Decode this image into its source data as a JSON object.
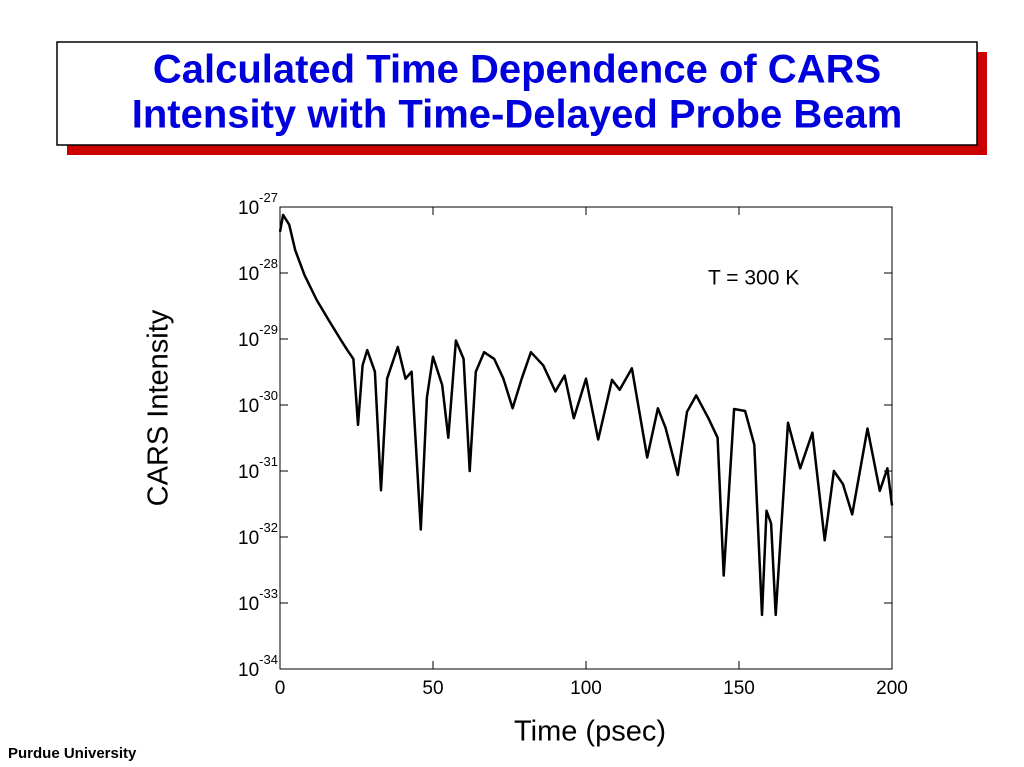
{
  "chart_data": {
    "type": "line",
    "title": [
      "Calculated Time Dependence of CARS",
      "Intensity with Time-Delayed Probe Beam"
    ],
    "xlabel": "Time (psec)",
    "ylabel": "CARS Intensity",
    "annotation": "T = 300 K",
    "footer": "Purdue University",
    "color": "#000000",
    "log_y": true,
    "x": [
      0,
      1,
      3,
      5,
      8,
      12,
      16,
      20,
      22,
      24,
      25.5,
      27,
      28.5,
      31,
      33,
      35,
      38.5,
      41,
      43,
      46,
      48,
      50,
      53,
      55,
      57.5,
      60,
      62,
      64,
      66.7,
      70,
      73,
      76,
      79,
      82,
      86,
      90,
      93,
      96,
      100,
      104,
      108.5,
      111,
      115,
      120,
      123.5,
      126,
      130,
      133,
      136,
      140,
      143,
      145,
      148.4,
      152,
      155,
      157.5,
      159,
      160.5,
      162,
      166,
      170,
      174,
      178,
      181,
      184,
      187,
      192,
      196,
      198.5,
      200
    ],
    "values": [
      4.2e-28,
      7.6e-28,
      5.4e-28,
      2.2e-28,
      9.3e-29,
      3.9e-29,
      1.9e-29,
      9.5e-30,
      6.8e-30,
      5e-30,
      5e-31,
      4e-30,
      6.8e-30,
      3.2e-30,
      5.1e-32,
      2.5e-30,
      7.6e-30,
      2.5e-30,
      3.2e-30,
      1.3e-32,
      1.3e-30,
      5.4e-30,
      2e-30,
      3.2e-31,
      9.5e-30,
      5e-30,
      1e-31,
      3.2e-30,
      6.3e-30,
      5e-30,
      2.5e-30,
      8.9e-31,
      2.5e-30,
      6.3e-30,
      4e-30,
      1.6e-30,
      2.8e-30,
      6.3e-31,
      2.5e-30,
      3e-31,
      2.4e-30,
      1.7e-30,
      3.6e-30,
      1.6e-31,
      8.9e-31,
      4.5e-31,
      8.7e-32,
      7.9e-31,
      1.4e-30,
      6.3e-31,
      3.2e-31,
      2.6e-33,
      8.7e-31,
      8.1e-31,
      2.5e-31,
      6.6e-34,
      2.5e-32,
      1.6e-32,
      6.6e-34,
      5.4e-31,
      1.1e-31,
      3.8e-31,
      8.9e-33,
      1e-31,
      6.3e-32,
      2.2e-32,
      4.4e-31,
      5e-32,
      1.1e-31,
      3e-32
    ],
    "xlim": [
      0,
      200
    ],
    "xticks": [
      0,
      50,
      100,
      150,
      200
    ],
    "ylim": [
      1e-34,
      1e-27
    ],
    "yticks": [
      {
        "value": 1e-27,
        "label": "10",
        "exponent": "-27"
      },
      {
        "value": 1e-28,
        "label": "10",
        "exponent": "-28"
      },
      {
        "value": 1e-29,
        "label": "10",
        "exponent": "-29"
      },
      {
        "value": 1e-30,
        "label": "10",
        "exponent": "-30"
      },
      {
        "value": 1e-31,
        "label": "10",
        "exponent": "-31"
      },
      {
        "value": 1e-32,
        "label": "10",
        "exponent": "-32"
      },
      {
        "value": 1e-33,
        "label": "10",
        "exponent": "-33"
      },
      {
        "value": 1e-34,
        "label": "10",
        "exponent": "-34"
      }
    ]
  }
}
